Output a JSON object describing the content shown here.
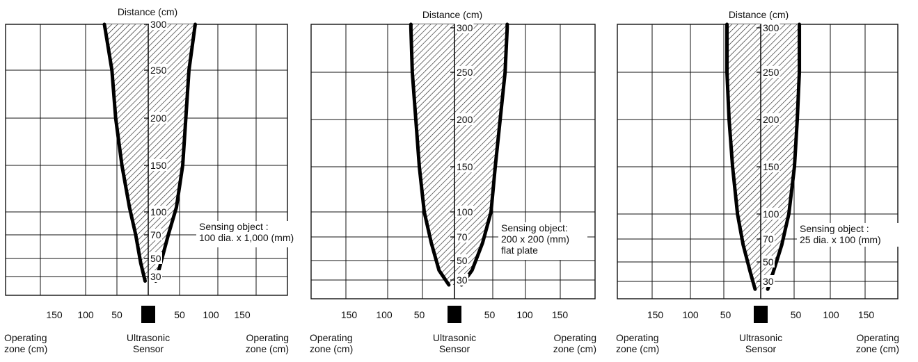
{
  "chart_data": [
    {
      "type": "area",
      "title": "Distance (cm)",
      "y_ticks": [
        "300",
        "250",
        "200",
        "150",
        "100",
        "70",
        "50",
        "30"
      ],
      "x_ticks": [
        "150",
        "100",
        "50",
        "50",
        "100",
        "150"
      ],
      "x_label_left": "Operating\nzone (cm)",
      "x_label_center": "Ultrasonic\nSensor",
      "x_label_right": "Operating\nzone (cm)",
      "annotation": "Sensing object :\n100 dia. x 1,000 (mm)",
      "xlim": [
        -200,
        200
      ],
      "ylim": [
        0,
        310
      ],
      "grid": true,
      "zone_left": [
        [
          -70,
          300
        ],
        [
          -58,
          250
        ],
        [
          -52,
          200
        ],
        [
          -42,
          150
        ],
        [
          -30,
          105
        ],
        [
          -20,
          70
        ],
        [
          -12,
          45
        ],
        [
          -5,
          25
        ]
      ],
      "zone_right": [
        [
          75,
          300
        ],
        [
          65,
          250
        ],
        [
          60,
          200
        ],
        [
          55,
          150
        ],
        [
          45,
          105
        ],
        [
          32,
          70
        ],
        [
          20,
          45
        ],
        [
          12,
          25
        ]
      ]
    },
    {
      "type": "area",
      "title": "Distance (cm)",
      "y_ticks": [
        "300",
        "250",
        "200",
        "150",
        "100",
        "70",
        "50",
        "30"
      ],
      "x_ticks": [
        "150",
        "100",
        "50",
        "50",
        "100",
        "150"
      ],
      "x_label_left": "Operating\nzone (cm)",
      "x_label_center": "Ultrasonic\nSensor",
      "x_label_right": "Operating\nzone (cm)",
      "annotation": "Sensing object:\n200 x 200 (mm)\nflat plate",
      "xlim": [
        -200,
        200
      ],
      "ylim": [
        0,
        310
      ],
      "grid": true,
      "zone_left": [
        [
          -62,
          300
        ],
        [
          -60,
          250
        ],
        [
          -55,
          200
        ],
        [
          -50,
          150
        ],
        [
          -43,
          100
        ],
        [
          -33,
          65
        ],
        [
          -22,
          40
        ],
        [
          -8,
          25
        ]
      ],
      "zone_right": [
        [
          75,
          300
        ],
        [
          72,
          250
        ],
        [
          65,
          200
        ],
        [
          58,
          150
        ],
        [
          52,
          100
        ],
        [
          40,
          65
        ],
        [
          25,
          40
        ],
        [
          10,
          25
        ]
      ]
    },
    {
      "type": "area",
      "title": "Distance (cm)",
      "y_ticks": [
        "300",
        "250",
        "200",
        "150",
        "100",
        "70",
        "50",
        "30"
      ],
      "x_ticks": [
        "150",
        "100",
        "50",
        "50",
        "100",
        "150"
      ],
      "x_label_left": "Operating\nzone (cm)",
      "x_label_center": "Ultrasonic\nSensor",
      "x_label_right": "Operating\nzone (cm)",
      "annotation": "Sensing object :\n25 dia. x 100 (mm)",
      "xlim": [
        -200,
        200
      ],
      "ylim": [
        0,
        310
      ],
      "grid": true,
      "zone_left": [
        [
          -48,
          300
        ],
        [
          -48,
          250
        ],
        [
          -45,
          200
        ],
        [
          -40,
          150
        ],
        [
          -33,
          100
        ],
        [
          -25,
          65
        ],
        [
          -15,
          40
        ],
        [
          -8,
          22
        ]
      ],
      "zone_right": [
        [
          55,
          300
        ],
        [
          55,
          250
        ],
        [
          52,
          200
        ],
        [
          48,
          150
        ],
        [
          40,
          100
        ],
        [
          30,
          65
        ],
        [
          18,
          40
        ],
        [
          10,
          22
        ]
      ]
    }
  ]
}
